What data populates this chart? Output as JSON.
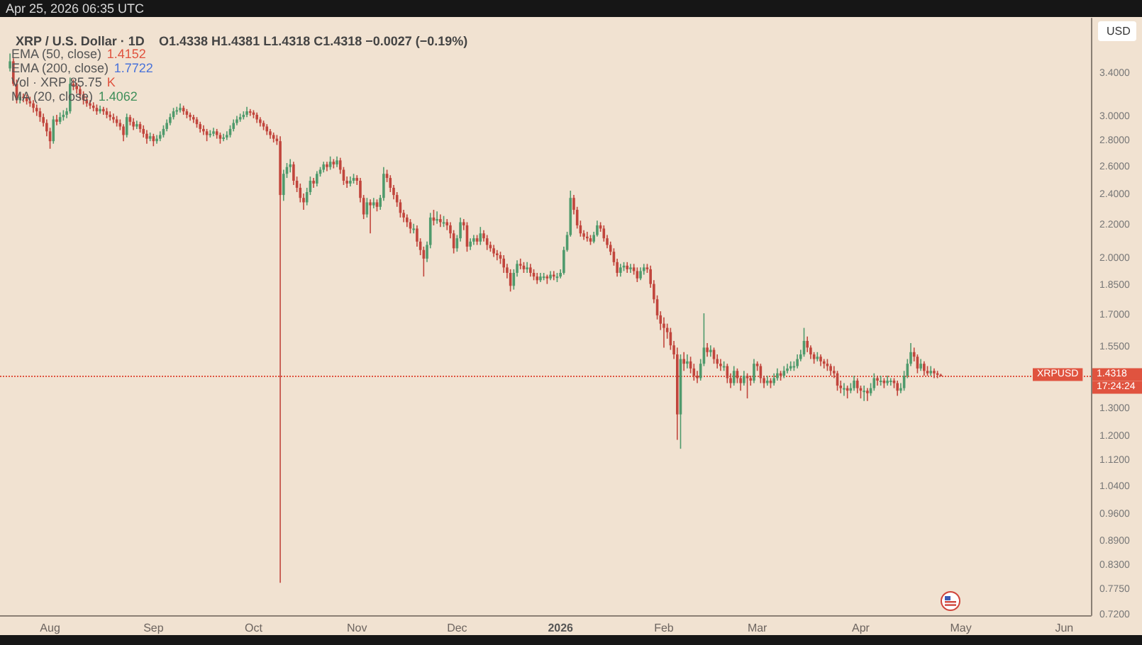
{
  "chart_data": {
    "type": "candlestick",
    "title": "XRP / U.S. Dollar · 1D",
    "subtitle": "O1.4338 H1.4381 L1.4318 C1.4318 −0.0027 (−0.19%)",
    "ylabel": "USD",
    "annotations": [
      "Apr 25, 2026 06:35 UTC",
      "EMA (50, close) 1.4152",
      "EMA (200, close) 1.7722",
      "Vol · XRP 85.75 K",
      "MA (20, close) 1.4062",
      "1.4318",
      "17:24:24"
    ],
    "log": "y",
    "grid": false,
    "xlim": [
      "2025-07-17",
      "2026-06-09"
    ],
    "xticks": [
      {
        "value": "2025-08-01",
        "label": "Aug"
      },
      {
        "value": "2025-09-01",
        "label": "Sep"
      },
      {
        "value": "2025-10-01",
        "label": "Oct"
      },
      {
        "value": "2025-11-01",
        "label": "Nov"
      },
      {
        "value": "2025-12-01",
        "label": "Dec"
      },
      {
        "value": "2026-01-01",
        "label": "2026"
      },
      {
        "value": "2026-02-01",
        "label": "Feb"
      },
      {
        "value": "2026-03-01",
        "label": "Mar"
      },
      {
        "value": "2026-04-01",
        "label": "Apr"
      },
      {
        "value": "2026-05-01",
        "label": "May"
      },
      {
        "value": "2026-06-01",
        "label": "Jun"
      }
    ],
    "ylim": [
      0.72,
      3.98
    ],
    "yticks": [
      {
        "value": 0.72,
        "label": "0.7200"
      },
      {
        "value": 0.775,
        "label": "0.7750"
      },
      {
        "value": 0.83,
        "label": "0.8300"
      },
      {
        "value": 0.89,
        "label": "0.8900"
      },
      {
        "value": 0.96,
        "label": "0.9600"
      },
      {
        "value": 1.04,
        "label": "1.0400"
      },
      {
        "value": 1.12,
        "label": "1.1200"
      },
      {
        "value": 1.2,
        "label": "1.2000"
      },
      {
        "value": 1.3,
        "label": "1.3000"
      },
      {
        "value": 1.55,
        "label": "1.5500"
      },
      {
        "value": 1.7,
        "label": "1.7000"
      },
      {
        "value": 1.85,
        "label": "1.8500"
      },
      {
        "value": 2,
        "label": "2.0000"
      },
      {
        "value": 2.2,
        "label": "2.2000"
      },
      {
        "value": 2.4,
        "label": "2.4000"
      },
      {
        "value": 2.6,
        "label": "2.6000"
      },
      {
        "value": 2.8,
        "label": "2.8000"
      },
      {
        "value": 3,
        "label": "3.0000"
      },
      {
        "value": 3.4,
        "label": "3.4000"
      }
    ],
    "ref_lines": [
      {
        "axis": "y",
        "value": 1.4318,
        "label": "XRPUSD",
        "color": "#e0533f",
        "line_style": "dotted"
      }
    ],
    "x": [
      "2025-07-20",
      "2025-07-21",
      "2025-07-22",
      "2025-07-23",
      "2025-07-24",
      "2025-07-25",
      "2025-07-26",
      "2025-07-27",
      "2025-07-28",
      "2025-07-29",
      "2025-07-30",
      "2025-07-31",
      "2025-08-01",
      "2025-08-02",
      "2025-08-03",
      "2025-08-04",
      "2025-08-05",
      "2025-08-06",
      "2025-08-07",
      "2025-08-08",
      "2025-08-09",
      "2025-08-10",
      "2025-08-11",
      "2025-08-12",
      "2025-08-13",
      "2025-08-14",
      "2025-08-15",
      "2025-08-16",
      "2025-08-17",
      "2025-08-18",
      "2025-08-19",
      "2025-08-20",
      "2025-08-21",
      "2025-08-22",
      "2025-08-23",
      "2025-08-24",
      "2025-08-25",
      "2025-08-26",
      "2025-08-27",
      "2025-08-28",
      "2025-08-29",
      "2025-08-30",
      "2025-08-31",
      "2025-09-01",
      "2025-09-02",
      "2025-09-03",
      "2025-09-04",
      "2025-09-05",
      "2025-09-06",
      "2025-09-07",
      "2025-09-08",
      "2025-09-09",
      "2025-09-10",
      "2025-09-11",
      "2025-09-12",
      "2025-09-13",
      "2025-09-14",
      "2025-09-15",
      "2025-09-16",
      "2025-09-17",
      "2025-09-18",
      "2025-09-19",
      "2025-09-20",
      "2025-09-21",
      "2025-09-22",
      "2025-09-23",
      "2025-09-24",
      "2025-09-25",
      "2025-09-26",
      "2025-09-27",
      "2025-09-28",
      "2025-09-29",
      "2025-09-30",
      "2025-10-01",
      "2025-10-02",
      "2025-10-03",
      "2025-10-04",
      "2025-10-05",
      "2025-10-06",
      "2025-10-07",
      "2025-10-08",
      "2025-10-09",
      "2025-10-10",
      "2025-10-11",
      "2025-10-12",
      "2025-10-13",
      "2025-10-14",
      "2025-10-15",
      "2025-10-16",
      "2025-10-17",
      "2025-10-18",
      "2025-10-19",
      "2025-10-20",
      "2025-10-21",
      "2025-10-22",
      "2025-10-23",
      "2025-10-24",
      "2025-10-25",
      "2025-10-26",
      "2025-10-27",
      "2025-10-28",
      "2025-10-29",
      "2025-10-30",
      "2025-10-31",
      "2025-11-01",
      "2025-11-02",
      "2025-11-03",
      "2025-11-04",
      "2025-11-05",
      "2025-11-06",
      "2025-11-07",
      "2025-11-08",
      "2025-11-09",
      "2025-11-10",
      "2025-11-11",
      "2025-11-12",
      "2025-11-13",
      "2025-11-14",
      "2025-11-15",
      "2025-11-16",
      "2025-11-17",
      "2025-11-18",
      "2025-11-19",
      "2025-11-20",
      "2025-11-21",
      "2025-11-22",
      "2025-11-23",
      "2025-11-24",
      "2025-11-25",
      "2025-11-26",
      "2025-11-27",
      "2025-11-28",
      "2025-11-29",
      "2025-11-30",
      "2025-12-01",
      "2025-12-02",
      "2025-12-03",
      "2025-12-04",
      "2025-12-05",
      "2025-12-06",
      "2025-12-07",
      "2025-12-08",
      "2025-12-09",
      "2025-12-10",
      "2025-12-11",
      "2025-12-12",
      "2025-12-13",
      "2025-12-14",
      "2025-12-15",
      "2025-12-16",
      "2025-12-17",
      "2025-12-18",
      "2025-12-19",
      "2025-12-20",
      "2025-12-21",
      "2025-12-22",
      "2025-12-23",
      "2025-12-24",
      "2025-12-25",
      "2025-12-26",
      "2025-12-27",
      "2025-12-28",
      "2025-12-29",
      "2025-12-30",
      "2025-12-31",
      "2026-01-01",
      "2026-01-02",
      "2026-01-03",
      "2026-01-04",
      "2026-01-05",
      "2026-01-06",
      "2026-01-07",
      "2026-01-08",
      "2026-01-09",
      "2026-01-10",
      "2026-01-11",
      "2026-01-12",
      "2026-01-13",
      "2026-01-14",
      "2026-01-15",
      "2026-01-16",
      "2026-01-17",
      "2026-01-18",
      "2026-01-19",
      "2026-01-20",
      "2026-01-21",
      "2026-01-22",
      "2026-01-23",
      "2026-01-24",
      "2026-01-25",
      "2026-01-26",
      "2026-01-27",
      "2026-01-28",
      "2026-01-29",
      "2026-01-30",
      "2026-01-31",
      "2026-02-01",
      "2026-02-02",
      "2026-02-03",
      "2026-02-04",
      "2026-02-05",
      "2026-02-06",
      "2026-02-07",
      "2026-02-08",
      "2026-02-09",
      "2026-02-10",
      "2026-02-11",
      "2026-02-12",
      "2026-02-13",
      "2026-02-14",
      "2026-02-15",
      "2026-02-16",
      "2026-02-17",
      "2026-02-18",
      "2026-02-19",
      "2026-02-20",
      "2026-02-21",
      "2026-02-22",
      "2026-02-23",
      "2026-02-24",
      "2026-02-25",
      "2026-02-26",
      "2026-02-27",
      "2026-02-28",
      "2026-03-01",
      "2026-03-02",
      "2026-03-03",
      "2026-03-04",
      "2026-03-05",
      "2026-03-06",
      "2026-03-07",
      "2026-03-08",
      "2026-03-09",
      "2026-03-10",
      "2026-03-11",
      "2026-03-12",
      "2026-03-13",
      "2026-03-14",
      "2026-03-15",
      "2026-03-16",
      "2026-03-17",
      "2026-03-18",
      "2026-03-19",
      "2026-03-20",
      "2026-03-21",
      "2026-03-22",
      "2026-03-23",
      "2026-03-24",
      "2026-03-25",
      "2026-03-26",
      "2026-03-27",
      "2026-03-28",
      "2026-03-29",
      "2026-03-30",
      "2026-03-31",
      "2026-04-01",
      "2026-04-02",
      "2026-04-03",
      "2026-04-04",
      "2026-04-05",
      "2026-04-06",
      "2026-04-07",
      "2026-04-08",
      "2026-04-09",
      "2026-04-10",
      "2026-04-11",
      "2026-04-12",
      "2026-04-13",
      "2026-04-14",
      "2026-04-15",
      "2026-04-16",
      "2026-04-17",
      "2026-04-18",
      "2026-04-19",
      "2026-04-20",
      "2026-04-21",
      "2026-04-22",
      "2026-04-23",
      "2026-04-24",
      "2026-04-25"
    ],
    "ohlc": [
      [
        3.45,
        3.6,
        3.42,
        3.52
      ],
      [
        3.52,
        3.55,
        3.28,
        3.3
      ],
      [
        3.3,
        3.34,
        3.12,
        3.15
      ],
      [
        3.15,
        3.22,
        3.12,
        3.18
      ],
      [
        3.18,
        3.21,
        3.13,
        3.17
      ],
      [
        3.17,
        3.2,
        3.11,
        3.14
      ],
      [
        3.14,
        3.18,
        3.09,
        3.12
      ],
      [
        3.12,
        3.15,
        3.04,
        3.08
      ],
      [
        3.08,
        3.11,
        3.01,
        3.05
      ],
      [
        3.05,
        3.08,
        2.96,
        3.0
      ],
      [
        3.0,
        3.03,
        2.92,
        2.95
      ],
      [
        2.95,
        2.98,
        2.84,
        2.88
      ],
      [
        2.88,
        2.91,
        2.74,
        2.8
      ],
      [
        2.8,
        3.01,
        2.78,
        2.98
      ],
      [
        2.98,
        3.02,
        2.93,
        2.96
      ],
      [
        2.96,
        3.04,
        2.94,
        3.0
      ],
      [
        3.0,
        3.06,
        2.97,
        3.02
      ],
      [
        3.02,
        3.08,
        2.99,
        3.05
      ],
      [
        3.05,
        3.36,
        3.03,
        3.3
      ],
      [
        3.3,
        3.34,
        3.24,
        3.28
      ],
      [
        3.28,
        3.31,
        3.21,
        3.25
      ],
      [
        3.25,
        3.28,
        3.16,
        3.2
      ],
      [
        3.2,
        3.23,
        3.11,
        3.15
      ],
      [
        3.15,
        3.18,
        3.09,
        3.12
      ],
      [
        3.12,
        3.15,
        3.07,
        3.1
      ],
      [
        3.1,
        3.13,
        3.05,
        3.08
      ],
      [
        3.08,
        3.11,
        3.02,
        3.05
      ],
      [
        3.05,
        3.1,
        3.03,
        3.07
      ],
      [
        3.07,
        3.09,
        3.02,
        3.05
      ],
      [
        3.05,
        3.08,
        2.99,
        3.02
      ],
      [
        3.02,
        3.05,
        2.97,
        3.0
      ],
      [
        3.0,
        3.03,
        2.95,
        2.98
      ],
      [
        2.98,
        3.01,
        2.92,
        2.95
      ],
      [
        2.95,
        2.98,
        2.89,
        2.92
      ],
      [
        2.92,
        2.94,
        2.8,
        2.85
      ],
      [
        2.85,
        3.03,
        2.83,
        3.0
      ],
      [
        3.0,
        3.02,
        2.93,
        2.96
      ],
      [
        2.96,
        2.99,
        2.89,
        2.92
      ],
      [
        2.92,
        2.97,
        2.9,
        2.94
      ],
      [
        2.94,
        2.96,
        2.87,
        2.9
      ],
      [
        2.9,
        2.93,
        2.83,
        2.86
      ],
      [
        2.86,
        2.89,
        2.78,
        2.82
      ],
      [
        2.82,
        2.87,
        2.8,
        2.84
      ],
      [
        2.84,
        2.86,
        2.76,
        2.8
      ],
      [
        2.8,
        2.85,
        2.78,
        2.82
      ],
      [
        2.82,
        2.88,
        2.8,
        2.85
      ],
      [
        2.85,
        2.93,
        2.83,
        2.9
      ],
      [
        2.9,
        2.98,
        2.88,
        2.95
      ],
      [
        2.95,
        3.03,
        2.93,
        3.0
      ],
      [
        3.0,
        3.08,
        2.98,
        3.05
      ],
      [
        3.05,
        3.09,
        3.02,
        3.06
      ],
      [
        3.06,
        3.12,
        3.04,
        3.08
      ],
      [
        3.08,
        3.1,
        3.02,
        3.05
      ],
      [
        3.05,
        3.07,
        2.99,
        3.02
      ],
      [
        3.02,
        3.04,
        2.97,
        3.0
      ],
      [
        3.0,
        3.02,
        2.95,
        2.98
      ],
      [
        2.98,
        3.0,
        2.91,
        2.94
      ],
      [
        2.94,
        2.96,
        2.87,
        2.9
      ],
      [
        2.9,
        2.93,
        2.85,
        2.88
      ],
      [
        2.88,
        2.9,
        2.8,
        2.85
      ],
      [
        2.85,
        2.89,
        2.83,
        2.86
      ],
      [
        2.86,
        2.91,
        2.84,
        2.88
      ],
      [
        2.88,
        2.9,
        2.82,
        2.85
      ],
      [
        2.85,
        2.87,
        2.78,
        2.82
      ],
      [
        2.82,
        2.86,
        2.8,
        2.83
      ],
      [
        2.83,
        2.88,
        2.81,
        2.85
      ],
      [
        2.85,
        2.93,
        2.83,
        2.9
      ],
      [
        2.9,
        2.98,
        2.88,
        2.95
      ],
      [
        2.95,
        3.01,
        2.93,
        2.98
      ],
      [
        2.98,
        3.03,
        2.96,
        3.0
      ],
      [
        3.0,
        3.05,
        2.98,
        3.02
      ],
      [
        3.02,
        3.09,
        3.0,
        3.05
      ],
      [
        3.05,
        3.07,
        3.01,
        3.04
      ],
      [
        3.04,
        3.06,
        2.99,
        3.02
      ],
      [
        3.02,
        3.04,
        2.95,
        2.98
      ],
      [
        2.98,
        3.0,
        2.92,
        2.95
      ],
      [
        2.95,
        2.97,
        2.89,
        2.92
      ],
      [
        2.92,
        2.94,
        2.85,
        2.88
      ],
      [
        2.88,
        2.9,
        2.82,
        2.85
      ],
      [
        2.85,
        2.87,
        2.79,
        2.82
      ],
      [
        2.82,
        2.85,
        2.77,
        2.8
      ],
      [
        2.8,
        2.84,
        0.79,
        2.4
      ],
      [
        2.4,
        2.58,
        2.36,
        2.55
      ],
      [
        2.55,
        2.63,
        2.52,
        2.6
      ],
      [
        2.6,
        2.66,
        2.56,
        2.62
      ],
      [
        2.62,
        2.64,
        2.47,
        2.5
      ],
      [
        2.5,
        2.53,
        2.42,
        2.45
      ],
      [
        2.45,
        2.48,
        2.35,
        2.38
      ],
      [
        2.38,
        2.41,
        2.3,
        2.35
      ],
      [
        2.35,
        2.45,
        2.33,
        2.42
      ],
      [
        2.42,
        2.53,
        2.4,
        2.5
      ],
      [
        2.5,
        2.52,
        2.45,
        2.48
      ],
      [
        2.48,
        2.57,
        2.46,
        2.55
      ],
      [
        2.55,
        2.6,
        2.53,
        2.58
      ],
      [
        2.58,
        2.64,
        2.56,
        2.62
      ],
      [
        2.62,
        2.64,
        2.57,
        2.6
      ],
      [
        2.6,
        2.68,
        2.58,
        2.64
      ],
      [
        2.64,
        2.66,
        2.59,
        2.62
      ],
      [
        2.62,
        2.68,
        2.6,
        2.65
      ],
      [
        2.65,
        2.67,
        2.55,
        2.58
      ],
      [
        2.58,
        2.6,
        2.47,
        2.5
      ],
      [
        2.5,
        2.53,
        2.45,
        2.48
      ],
      [
        2.48,
        2.53,
        2.46,
        2.5
      ],
      [
        2.5,
        2.55,
        2.48,
        2.52
      ],
      [
        2.52,
        2.54,
        2.47,
        2.5
      ],
      [
        2.5,
        2.52,
        2.35,
        2.38
      ],
      [
        2.38,
        2.4,
        2.24,
        2.27
      ],
      [
        2.27,
        2.38,
        2.25,
        2.35
      ],
      [
        2.35,
        2.37,
        2.15,
        2.33
      ],
      [
        2.33,
        2.38,
        2.31,
        2.35
      ],
      [
        2.35,
        2.37,
        2.29,
        2.32
      ],
      [
        2.32,
        2.4,
        2.3,
        2.38
      ],
      [
        2.38,
        2.6,
        2.36,
        2.55
      ],
      [
        2.55,
        2.58,
        2.49,
        2.52
      ],
      [
        2.52,
        2.54,
        2.42,
        2.45
      ],
      [
        2.45,
        2.47,
        2.37,
        2.4
      ],
      [
        2.4,
        2.42,
        2.32,
        2.35
      ],
      [
        2.35,
        2.37,
        2.25,
        2.28
      ],
      [
        2.28,
        2.3,
        2.22,
        2.25
      ],
      [
        2.25,
        2.27,
        2.19,
        2.22
      ],
      [
        2.22,
        2.24,
        2.15,
        2.18
      ],
      [
        2.18,
        2.21,
        2.15,
        2.18
      ],
      [
        2.18,
        2.2,
        2.07,
        2.1
      ],
      [
        2.1,
        2.12,
        2.02,
        2.05
      ],
      [
        2.05,
        2.07,
        1.9,
        2.0
      ],
      [
        2.0,
        2.1,
        1.98,
        2.08
      ],
      [
        2.08,
        2.28,
        2.06,
        2.25
      ],
      [
        2.25,
        2.3,
        2.2,
        2.23
      ],
      [
        2.23,
        2.29,
        2.21,
        2.24
      ],
      [
        2.24,
        2.27,
        2.19,
        2.22
      ],
      [
        2.22,
        2.26,
        2.19,
        2.22
      ],
      [
        2.22,
        2.24,
        2.17,
        2.2
      ],
      [
        2.2,
        2.22,
        2.12,
        2.15
      ],
      [
        2.15,
        2.17,
        2.03,
        2.06
      ],
      [
        2.06,
        2.14,
        2.04,
        2.12
      ],
      [
        2.12,
        2.25,
        2.1,
        2.22
      ],
      [
        2.22,
        2.24,
        2.17,
        2.2
      ],
      [
        2.2,
        2.22,
        2.04,
        2.07
      ],
      [
        2.07,
        2.12,
        2.05,
        2.1
      ],
      [
        2.1,
        2.14,
        2.08,
        2.12
      ],
      [
        2.12,
        2.14,
        2.08,
        2.1
      ],
      [
        2.1,
        2.19,
        2.08,
        2.15
      ],
      [
        2.15,
        2.17,
        2.1,
        2.12
      ],
      [
        2.12,
        2.14,
        2.05,
        2.08
      ],
      [
        2.08,
        2.1,
        2.04,
        2.06
      ],
      [
        2.06,
        2.08,
        2.01,
        2.03
      ],
      [
        2.03,
        2.05,
        1.99,
        2.02
      ],
      [
        2.02,
        2.04,
        1.97,
        2.0
      ],
      [
        2.0,
        2.02,
        1.92,
        1.95
      ],
      [
        1.95,
        1.97,
        1.89,
        1.92
      ],
      [
        1.92,
        1.94,
        1.82,
        1.85
      ],
      [
        1.85,
        1.94,
        1.83,
        1.92
      ],
      [
        1.92,
        1.99,
        1.9,
        1.97
      ],
      [
        1.97,
        2.0,
        1.94,
        1.96
      ],
      [
        1.96,
        1.98,
        1.92,
        1.94
      ],
      [
        1.94,
        1.98,
        1.92,
        1.95
      ],
      [
        1.95,
        1.97,
        1.9,
        1.92
      ],
      [
        1.92,
        1.94,
        1.88,
        1.9
      ],
      [
        1.9,
        1.92,
        1.86,
        1.88
      ],
      [
        1.88,
        1.92,
        1.87,
        1.9
      ],
      [
        1.9,
        1.92,
        1.88,
        1.9
      ],
      [
        1.9,
        1.91,
        1.86,
        1.89
      ],
      [
        1.89,
        1.93,
        1.88,
        1.91
      ],
      [
        1.91,
        1.93,
        1.88,
        1.9
      ],
      [
        1.9,
        1.92,
        1.87,
        1.9
      ],
      [
        1.9,
        1.94,
        1.89,
        1.92
      ],
      [
        1.92,
        2.07,
        1.91,
        2.05
      ],
      [
        2.05,
        2.16,
        2.04,
        2.14
      ],
      [
        2.14,
        2.43,
        2.13,
        2.38
      ],
      [
        2.38,
        2.4,
        2.27,
        2.3
      ],
      [
        2.3,
        2.32,
        2.18,
        2.2
      ],
      [
        2.2,
        2.23,
        2.13,
        2.15
      ],
      [
        2.15,
        2.17,
        2.11,
        2.13
      ],
      [
        2.13,
        2.16,
        2.1,
        2.12
      ],
      [
        2.12,
        2.14,
        2.08,
        2.1
      ],
      [
        2.1,
        2.16,
        2.09,
        2.14
      ],
      [
        2.14,
        2.23,
        2.13,
        2.2
      ],
      [
        2.2,
        2.22,
        2.16,
        2.18
      ],
      [
        2.18,
        2.2,
        2.1,
        2.12
      ],
      [
        2.12,
        2.14,
        2.06,
        2.08
      ],
      [
        2.08,
        2.1,
        2.02,
        2.04
      ],
      [
        2.04,
        2.06,
        1.96,
        1.98
      ],
      [
        1.98,
        2.0,
        1.9,
        1.92
      ],
      [
        1.92,
        1.97,
        1.9,
        1.95
      ],
      [
        1.95,
        1.98,
        1.93,
        1.96
      ],
      [
        1.96,
        1.98,
        1.92,
        1.94
      ],
      [
        1.94,
        1.97,
        1.92,
        1.95
      ],
      [
        1.95,
        1.97,
        1.91,
        1.93
      ],
      [
        1.93,
        1.95,
        1.87,
        1.89
      ],
      [
        1.89,
        1.95,
        1.88,
        1.93
      ],
      [
        1.93,
        1.97,
        1.91,
        1.95
      ],
      [
        1.95,
        1.97,
        1.92,
        1.94
      ],
      [
        1.94,
        1.96,
        1.84,
        1.86
      ],
      [
        1.86,
        1.88,
        1.76,
        1.78
      ],
      [
        1.78,
        1.8,
        1.68,
        1.7
      ],
      [
        1.7,
        1.72,
        1.63,
        1.66
      ],
      [
        1.66,
        1.69,
        1.55,
        1.64
      ],
      [
        1.64,
        1.66,
        1.59,
        1.62
      ],
      [
        1.62,
        1.64,
        1.54,
        1.56
      ],
      [
        1.56,
        1.58,
        1.5,
        1.52
      ],
      [
        1.52,
        1.55,
        1.19,
        1.28
      ],
      [
        1.28,
        1.52,
        1.16,
        1.5
      ],
      [
        1.5,
        1.53,
        1.45,
        1.48
      ],
      [
        1.48,
        1.52,
        1.46,
        1.49
      ],
      [
        1.49,
        1.51,
        1.44,
        1.46
      ],
      [
        1.46,
        1.48,
        1.41,
        1.43
      ],
      [
        1.43,
        1.45,
        1.4,
        1.42
      ],
      [
        1.42,
        1.5,
        1.41,
        1.48
      ],
      [
        1.48,
        1.71,
        1.47,
        1.55
      ],
      [
        1.55,
        1.57,
        1.51,
        1.53
      ],
      [
        1.53,
        1.56,
        1.51,
        1.54
      ],
      [
        1.54,
        1.55,
        1.48,
        1.5
      ],
      [
        1.5,
        1.52,
        1.46,
        1.48
      ],
      [
        1.48,
        1.5,
        1.45,
        1.47
      ],
      [
        1.47,
        1.49,
        1.45,
        1.47
      ],
      [
        1.47,
        1.48,
        1.4,
        1.42
      ],
      [
        1.42,
        1.44,
        1.38,
        1.4
      ],
      [
        1.4,
        1.47,
        1.39,
        1.45
      ],
      [
        1.45,
        1.46,
        1.4,
        1.42
      ],
      [
        1.42,
        1.43,
        1.37,
        1.4
      ],
      [
        1.4,
        1.45,
        1.39,
        1.43
      ],
      [
        1.43,
        1.44,
        1.34,
        1.42
      ],
      [
        1.42,
        1.43,
        1.39,
        1.41
      ],
      [
        1.41,
        1.5,
        1.4,
        1.48
      ],
      [
        1.48,
        1.49,
        1.45,
        1.47
      ],
      [
        1.47,
        1.48,
        1.4,
        1.42
      ],
      [
        1.42,
        1.43,
        1.38,
        1.4
      ],
      [
        1.4,
        1.43,
        1.39,
        1.41
      ],
      [
        1.41,
        1.42,
        1.38,
        1.4
      ],
      [
        1.4,
        1.44,
        1.39,
        1.42
      ],
      [
        1.42,
        1.46,
        1.41,
        1.44
      ],
      [
        1.44,
        1.45,
        1.41,
        1.43
      ],
      [
        1.43,
        1.47,
        1.42,
        1.45
      ],
      [
        1.45,
        1.48,
        1.44,
        1.46
      ],
      [
        1.46,
        1.49,
        1.45,
        1.47
      ],
      [
        1.47,
        1.49,
        1.45,
        1.47
      ],
      [
        1.47,
        1.52,
        1.46,
        1.5
      ],
      [
        1.5,
        1.54,
        1.49,
        1.52
      ],
      [
        1.52,
        1.64,
        1.51,
        1.58
      ],
      [
        1.58,
        1.6,
        1.53,
        1.55
      ],
      [
        1.55,
        1.56,
        1.5,
        1.52
      ],
      [
        1.52,
        1.53,
        1.48,
        1.5
      ],
      [
        1.5,
        1.53,
        1.49,
        1.51
      ],
      [
        1.51,
        1.52,
        1.47,
        1.49
      ],
      [
        1.49,
        1.5,
        1.46,
        1.48
      ],
      [
        1.48,
        1.5,
        1.45,
        1.47
      ],
      [
        1.47,
        1.48,
        1.43,
        1.45
      ],
      [
        1.45,
        1.47,
        1.42,
        1.44
      ],
      [
        1.44,
        1.45,
        1.37,
        1.39
      ],
      [
        1.39,
        1.41,
        1.36,
        1.38
      ],
      [
        1.38,
        1.4,
        1.35,
        1.38
      ],
      [
        1.38,
        1.39,
        1.34,
        1.37
      ],
      [
        1.37,
        1.4,
        1.36,
        1.38
      ],
      [
        1.38,
        1.43,
        1.37,
        1.41
      ],
      [
        1.41,
        1.42,
        1.36,
        1.38
      ],
      [
        1.38,
        1.39,
        1.34,
        1.37
      ],
      [
        1.37,
        1.39,
        1.33,
        1.37
      ],
      [
        1.37,
        1.38,
        1.33,
        1.36
      ],
      [
        1.36,
        1.4,
        1.35,
        1.38
      ],
      [
        1.38,
        1.44,
        1.37,
        1.42
      ],
      [
        1.42,
        1.43,
        1.39,
        1.41
      ],
      [
        1.41,
        1.43,
        1.39,
        1.41
      ],
      [
        1.41,
        1.42,
        1.38,
        1.4
      ],
      [
        1.4,
        1.43,
        1.39,
        1.41
      ],
      [
        1.41,
        1.42,
        1.39,
        1.41
      ],
      [
        1.41,
        1.42,
        1.38,
        1.4
      ],
      [
        1.4,
        1.41,
        1.35,
        1.37
      ],
      [
        1.37,
        1.4,
        1.36,
        1.38
      ],
      [
        1.38,
        1.45,
        1.37,
        1.43
      ],
      [
        1.43,
        1.5,
        1.42,
        1.48
      ],
      [
        1.48,
        1.57,
        1.47,
        1.53
      ],
      [
        1.53,
        1.55,
        1.49,
        1.51
      ],
      [
        1.51,
        1.52,
        1.44,
        1.46
      ],
      [
        1.46,
        1.5,
        1.45,
        1.48
      ],
      [
        1.48,
        1.49,
        1.43,
        1.45
      ],
      [
        1.45,
        1.47,
        1.43,
        1.44
      ],
      [
        1.44,
        1.47,
        1.43,
        1.45
      ],
      [
        1.45,
        1.46,
        1.42,
        1.44
      ],
      [
        1.44,
        1.45,
        1.42,
        1.4338
      ],
      [
        1.4338,
        1.4381,
        1.4318,
        1.4318
      ]
    ]
  }
}
